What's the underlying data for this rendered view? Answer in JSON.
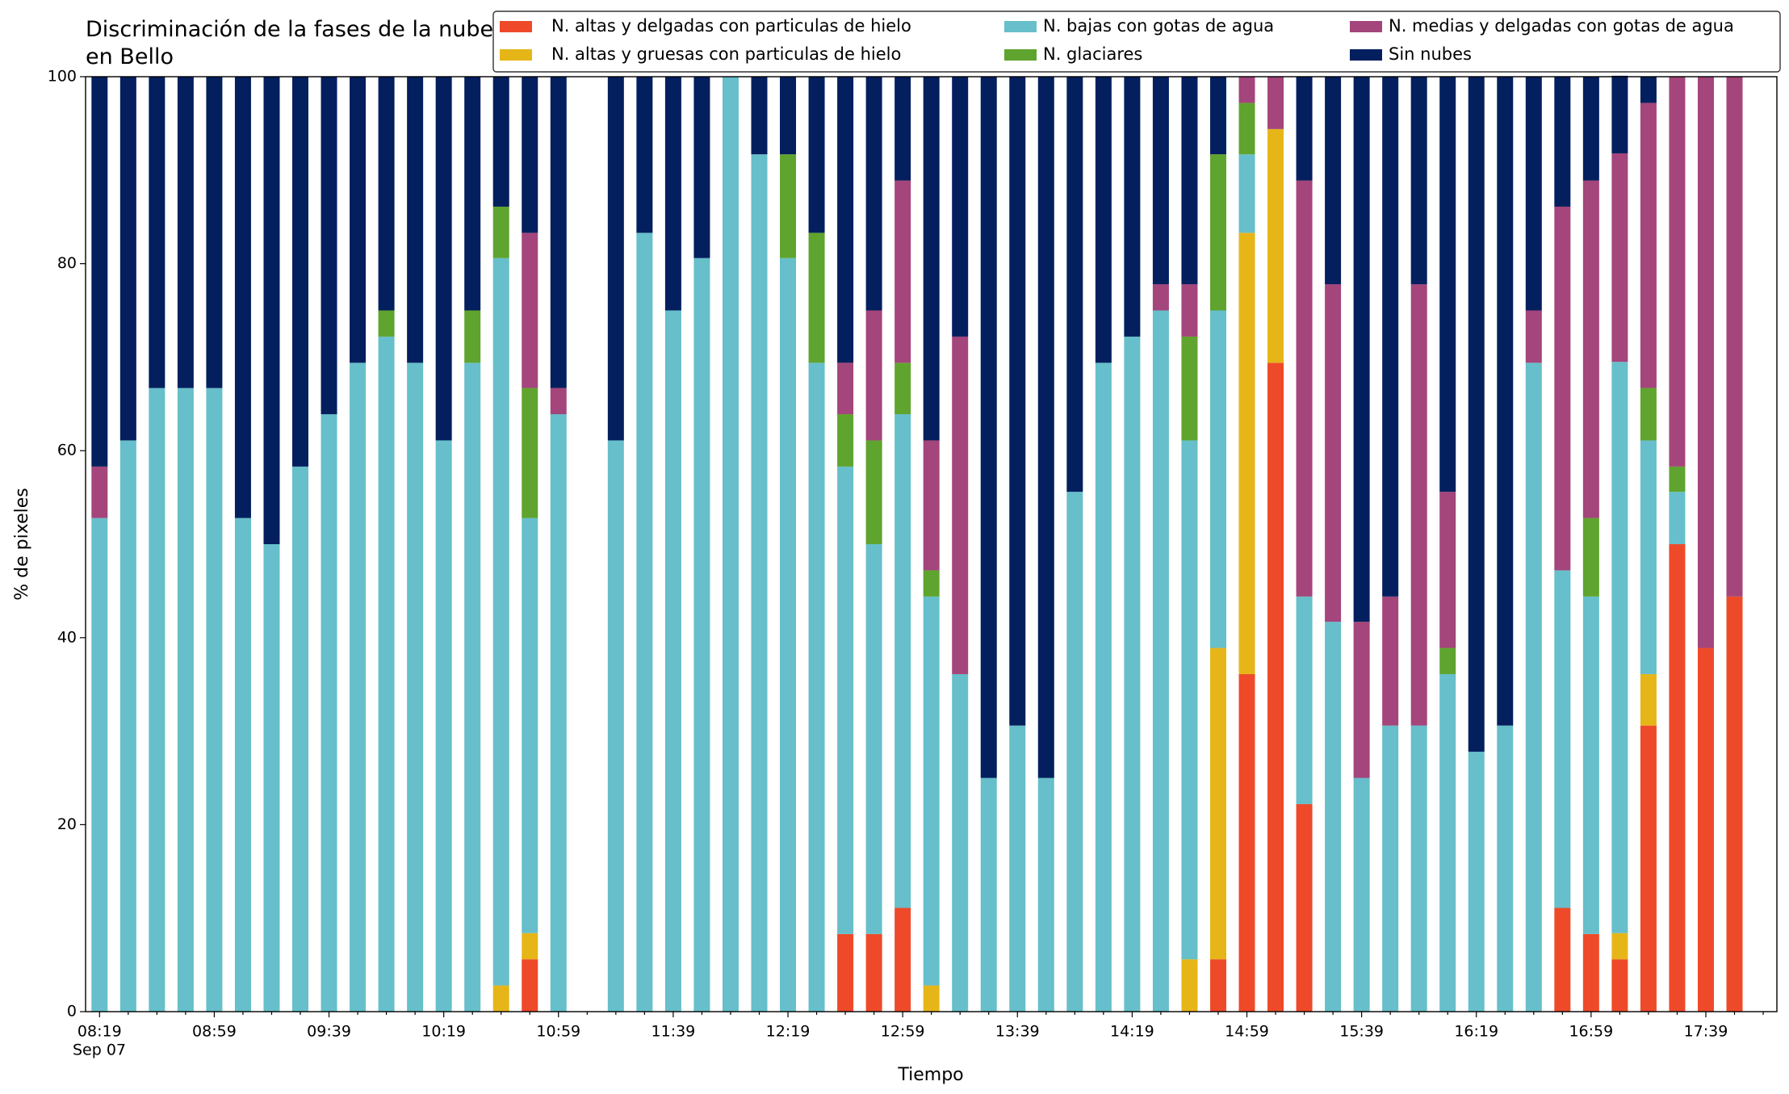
{
  "chart_data": {
    "type": "stacked_bar",
    "title": "Discriminación de la fases de la nube en Bello",
    "x_label": "Tiempo",
    "y_label": "% de pixeles",
    "date_label": "Sep 07",
    "categories": [
      "08:19",
      null,
      null,
      null,
      "08:59",
      null,
      null,
      null,
      "09:39",
      null,
      null,
      null,
      "10:19",
      null,
      null,
      null,
      "10:59",
      null,
      null,
      null,
      "11:39",
      null,
      null,
      null,
      "12:19",
      null,
      null,
      null,
      "12:59",
      null,
      null,
      null,
      "13:39",
      null,
      null,
      null,
      "14:19",
      null,
      null,
      null,
      "14:59",
      null,
      null,
      null,
      "15:39",
      null,
      null,
      null,
      "16:19",
      null,
      null,
      null,
      "16:59",
      null,
      null,
      null,
      "17:39",
      null
    ],
    "ylim": [
      0,
      100
    ],
    "yticks": [
      0,
      20,
      40,
      60,
      80,
      100
    ],
    "series": [
      {
        "name": "N. altas y delgadas con particulas de hielo",
        "color": "#ee4a2a",
        "values": [
          0,
          0,
          0,
          0,
          0,
          0,
          0,
          0,
          0,
          0,
          0,
          0,
          0,
          0,
          0,
          5.6,
          0,
          null,
          0,
          0,
          0,
          0,
          0,
          0,
          0,
          0,
          8.3,
          8.3,
          11.1,
          0,
          0,
          0,
          0,
          0,
          0,
          0,
          0,
          0,
          0,
          5.6,
          36.1,
          69.4,
          22.2,
          0,
          0,
          0,
          0,
          0,
          0,
          0,
          0,
          11.1,
          8.3,
          5.6,
          30.6,
          50,
          38.9,
          44.4
        ]
      },
      {
        "name": "N. altas y gruesas con particulas de hielo",
        "color": "#e6b619",
        "values": [
          0,
          0,
          0,
          0,
          0,
          0,
          0,
          0,
          0,
          0,
          0,
          0,
          0,
          0,
          2.8,
          2.8,
          0,
          null,
          0,
          0,
          0,
          0,
          0,
          0,
          0,
          0,
          0,
          0,
          0,
          2.8,
          0,
          0,
          0,
          0,
          0,
          0,
          0,
          0,
          5.6,
          33.3,
          47.2,
          25,
          0,
          0,
          0,
          0,
          0,
          0,
          0,
          0,
          0,
          0,
          0,
          2.8,
          5.5,
          0,
          0,
          0
        ]
      },
      {
        "name": "N. bajas con gotas de agua",
        "color": "#66bfca",
        "values": [
          52.8,
          61.1,
          66.7,
          66.7,
          66.7,
          52.8,
          50,
          58.3,
          63.9,
          69.4,
          72.2,
          69.4,
          61.1,
          69.4,
          77.8,
          44.4,
          63.9,
          null,
          61.1,
          83.3,
          75,
          80.6,
          100,
          91.7,
          80.6,
          69.4,
          50,
          41.7,
          52.8,
          41.6,
          36.1,
          25,
          30.6,
          25,
          55.6,
          69.4,
          72.2,
          75,
          55.5,
          36.1,
          8.4,
          0,
          22.2,
          41.7,
          25,
          30.6,
          30.6,
          36.1,
          27.8,
          30.6,
          69.4,
          36.1,
          36.1,
          61.1,
          25,
          5.6,
          0,
          0
        ]
      },
      {
        "name": "N. glaciares",
        "color": "#5fa42e",
        "values": [
          0,
          0,
          0,
          0,
          0,
          0,
          0,
          0,
          0,
          0,
          2.8,
          0,
          0,
          5.6,
          5.5,
          13.9,
          0,
          null,
          0,
          0,
          0,
          0,
          0,
          0,
          11.1,
          13.9,
          5.6,
          11.1,
          5.5,
          2.8,
          0,
          0,
          0,
          0,
          0,
          0,
          0,
          0,
          11.1,
          16.7,
          5.5,
          0,
          0,
          0,
          0,
          0,
          0,
          2.8,
          0,
          0,
          0,
          0,
          8.4,
          0,
          5.6,
          2.7,
          0,
          0
        ]
      },
      {
        "name": "N. medias y delgadas con gotas de agua",
        "color": "#a4457b",
        "values": [
          5.5,
          0,
          0,
          0,
          0,
          0,
          0,
          0,
          0,
          0,
          0,
          0,
          0,
          0,
          0,
          16.6,
          2.8,
          null,
          0,
          0,
          0,
          0,
          0,
          0,
          0,
          0,
          5.5,
          13.9,
          19.5,
          13.9,
          36.1,
          0,
          0,
          0,
          0,
          0,
          0,
          2.8,
          5.6,
          0,
          2.8,
          5.6,
          44.5,
          36.1,
          16.7,
          13.8,
          47.2,
          16.7,
          0,
          0,
          5.6,
          38.9,
          36.1,
          22.3,
          30.5,
          41.7,
          61.1,
          55.6
        ]
      },
      {
        "name": "Sin nubes",
        "color": "#041f5e",
        "values": [
          41.7,
          38.9,
          33.3,
          33.3,
          33.3,
          47.2,
          50,
          41.7,
          36.1,
          30.6,
          25,
          30.6,
          38.9,
          25,
          13.9,
          16.7,
          33.3,
          null,
          38.9,
          16.7,
          25,
          19.4,
          0,
          8.3,
          8.3,
          16.7,
          30.6,
          25,
          11.1,
          38.9,
          27.8,
          75,
          69.4,
          75,
          44.4,
          30.6,
          27.8,
          22.2,
          22.2,
          8.3,
          0,
          0,
          11.1,
          22.2,
          58.3,
          55.6,
          22.2,
          44.4,
          72.2,
          69.4,
          25,
          13.9,
          11.1,
          8.3,
          2.8,
          0,
          0,
          0
        ]
      }
    ]
  }
}
